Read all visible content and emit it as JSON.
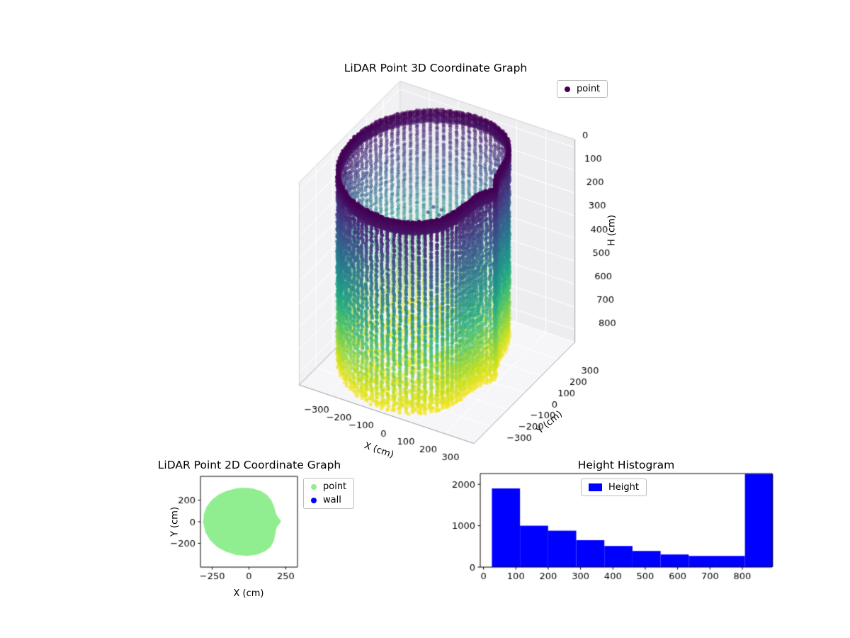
{
  "figure": {
    "background": "#ffffff",
    "kind": "matplotlib-figure"
  },
  "chart_data": [
    {
      "id": "lidar-3d",
      "type": "scatter",
      "projection": "3d",
      "title": "LiDAR Point 3D Coordinate Graph",
      "xlabel": "X (cm)",
      "ylabel": "Y (cm)",
      "zlabel": "H (cm)",
      "xticks": [
        -300,
        -200,
        -100,
        0,
        100,
        200,
        300
      ],
      "yticks": [
        -300,
        -200,
        -100,
        0,
        100,
        200,
        300
      ],
      "zticks": [
        0,
        100,
        200,
        300,
        400,
        500,
        600,
        700,
        800
      ],
      "xlim": [
        -300,
        300
      ],
      "ylim": [
        -300,
        300
      ],
      "zlim": [
        -35,
        855
      ],
      "zaxis_inverted": true,
      "colormap": "viridis",
      "color_encoding": "height H (cm): 0 = dark purple (top), 850 = yellow (bottom)",
      "legend": [
        {
          "label": "point",
          "color": "#440154"
        }
      ],
      "legend_position": "upper right",
      "grid": true,
      "point_cloud": {
        "shape": "room scan: cylindrical wall shell + ceiling ring + floor disk",
        "wall_height_range_cm": [
          0,
          850
        ],
        "wall_column_azimuth_step_deg": 3.75,
        "wall_point_vertical_step_cm": 12,
        "ceiling_band_cm": [
          0,
          52
        ],
        "floor_band_cm": [
          812,
          852
        ],
        "wall_radius_follows": "footprint_polygon of 2D chart (max radius ~300 cm, clipped to ~170-205 cm on +X side)"
      }
    },
    {
      "id": "lidar-2d",
      "type": "scatter",
      "title": "LiDAR Point 2D Coordinate Graph",
      "xlabel": "X (cm)",
      "ylabel": "Y (cm)",
      "xticks": [
        -250,
        0,
        250
      ],
      "yticks": [
        -200,
        0,
        200
      ],
      "xlim": [
        -330,
        330
      ],
      "ylim": [
        -420,
        420
      ],
      "legend_position": "outside upper right",
      "series": [
        {
          "name": "point",
          "color": "#90EE90"
        },
        {
          "name": "wall",
          "color": "#0000FF"
        }
      ],
      "footprint_polygon": [
        [
          205,
          3
        ],
        [
          188,
          32
        ],
        [
          174,
          64
        ],
        [
          166,
          100
        ],
        [
          158,
          140
        ],
        [
          142,
          190
        ],
        [
          115,
          235
        ],
        [
          78,
          268
        ],
        [
          30,
          290
        ],
        [
          -25,
          299
        ],
        [
          -85,
          293
        ],
        [
          -145,
          272
        ],
        [
          -200,
          238
        ],
        [
          -245,
          190
        ],
        [
          -278,
          130
        ],
        [
          -296,
          62
        ],
        [
          -299,
          -10
        ],
        [
          -285,
          -90
        ],
        [
          -255,
          -160
        ],
        [
          -210,
          -220
        ],
        [
          -150,
          -264
        ],
        [
          -82,
          -292
        ],
        [
          -10,
          -300
        ],
        [
          55,
          -287
        ],
        [
          105,
          -258
        ],
        [
          140,
          -218
        ],
        [
          158,
          -170
        ],
        [
          166,
          -120
        ],
        [
          172,
          -70
        ],
        [
          182,
          -35
        ]
      ]
    },
    {
      "id": "height-histogram",
      "type": "bar",
      "title": "Height Histogram",
      "legend": [
        {
          "label": "Height",
          "color": "#0000FF"
        }
      ],
      "legend_position": "upper center",
      "bin_edges": [
        26,
        112.9,
        199.8,
        286.7,
        373.6,
        460.5,
        547.4,
        634.3,
        721.2,
        808.1,
        895
      ],
      "values": [
        1900,
        1000,
        880,
        650,
        510,
        390,
        305,
        270,
        270,
        2250
      ],
      "xticks": [
        0,
        100,
        200,
        300,
        400,
        500,
        600,
        700,
        800
      ],
      "yticks": [
        0,
        1000,
        2000
      ],
      "xlim": [
        -10,
        892
      ],
      "ylim": [
        0,
        2260
      ],
      "xlabel": "",
      "ylabel": ""
    }
  ]
}
